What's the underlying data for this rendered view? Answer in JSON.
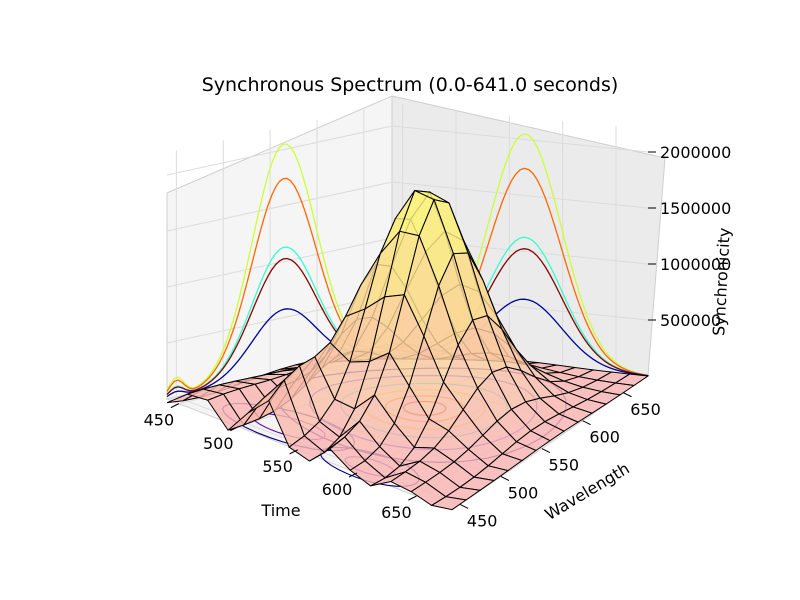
{
  "chart_data": {
    "type": "surface",
    "title": "Synchronous Spectrum (0.0-641.0 seconds)",
    "xlabel": "Time",
    "ylabel": "Wavelength",
    "zlabel": "Synchronicity",
    "xlim": [
      440,
      680
    ],
    "ylim": [
      440,
      680
    ],
    "zlim": [
      0,
      2000000
    ],
    "x_ticks": [
      "450",
      "500",
      "550",
      "600",
      "650"
    ],
    "y_ticks": [
      "450",
      "500",
      "550",
      "600",
      "650"
    ],
    "z_ticks": [
      "500000",
      "1000000",
      "1500000",
      "2000000"
    ],
    "surface_peak": {
      "time": 560,
      "wavelength": 560,
      "synchronicity": 2000000
    },
    "grid": true,
    "colormap": "autumn",
    "projection_profiles": [
      "time-wall",
      "wavelength-wall",
      "floor-contours"
    ]
  }
}
